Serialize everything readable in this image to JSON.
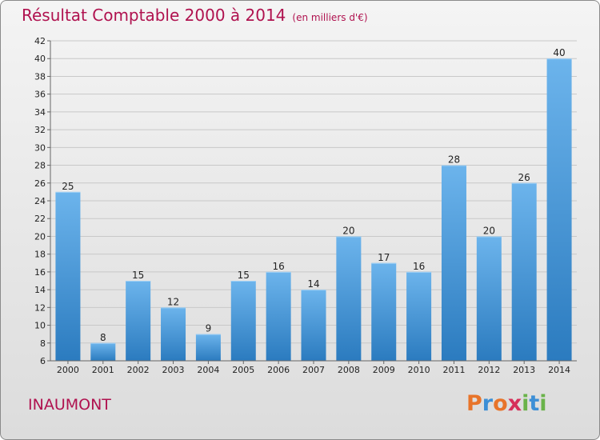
{
  "header": {
    "title": "Résultat Comptable 2000 à 2014",
    "unit": "(en milliers d'€)"
  },
  "footer": {
    "commune": "INAUMONT",
    "logo_letters": [
      "P",
      "r",
      "o",
      "x",
      "i",
      "t",
      "i"
    ],
    "logo_colors": [
      "#e8742a",
      "#3d8fd6",
      "#e8742a",
      "#d62f5a",
      "#6ab34a",
      "#3d8fd6",
      "#6ab34a"
    ]
  },
  "colors": {
    "title": "#b0124f",
    "bar_light": "#6cb4ec",
    "bar_dark": "#2b7bbf",
    "grid": "#c8c8c8",
    "axis": "#666666"
  },
  "chart_data": {
    "type": "bar",
    "title": "Résultat Comptable 2000 à 2014",
    "subtitle": "(en milliers d'€)",
    "xlabel": "",
    "ylabel": "",
    "categories": [
      "2000",
      "2001",
      "2002",
      "2003",
      "2004",
      "2005",
      "2006",
      "2007",
      "2008",
      "2009",
      "2010",
      "2011",
      "2012",
      "2013",
      "2014"
    ],
    "values": [
      25,
      8,
      15,
      12,
      9,
      15,
      16,
      14,
      20,
      17,
      16,
      28,
      20,
      26,
      40
    ],
    "ylim": [
      6,
      42
    ],
    "yticks": [
      6,
      8,
      10,
      12,
      14,
      16,
      18,
      20,
      22,
      24,
      26,
      28,
      30,
      32,
      34,
      36,
      38,
      40,
      42
    ],
    "grid": true
  }
}
